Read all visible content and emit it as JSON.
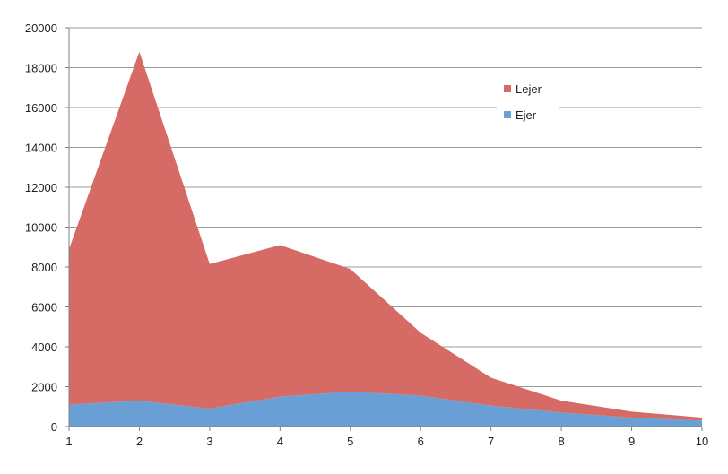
{
  "chart_data": {
    "type": "area",
    "stacked": true,
    "x": [
      1,
      2,
      3,
      4,
      5,
      6,
      7,
      8,
      9,
      10
    ],
    "series": [
      {
        "name": "Ejer",
        "values": [
          1100,
          1300,
          900,
          1500,
          1750,
          1550,
          1050,
          700,
          450,
          300
        ],
        "color": "#6a9fd5"
      },
      {
        "name": "Lejer",
        "values": [
          7800,
          17500,
          7250,
          7600,
          6150,
          3150,
          1400,
          600,
          300,
          150
        ],
        "color": "#d56b64"
      }
    ],
    "xticks": [
      "1",
      "2",
      "3",
      "4",
      "5",
      "6",
      "7",
      "8",
      "9",
      "10"
    ],
    "yticks": [
      "0",
      "2000",
      "4000",
      "6000",
      "8000",
      "10000",
      "12000",
      "14000",
      "16000",
      "18000",
      "20000"
    ],
    "xlim": [
      1,
      10
    ],
    "ylim": [
      0,
      20000
    ],
    "grid": true,
    "legend": {
      "placement": "top-right",
      "entries": [
        "Lejer",
        "Ejer"
      ]
    }
  }
}
